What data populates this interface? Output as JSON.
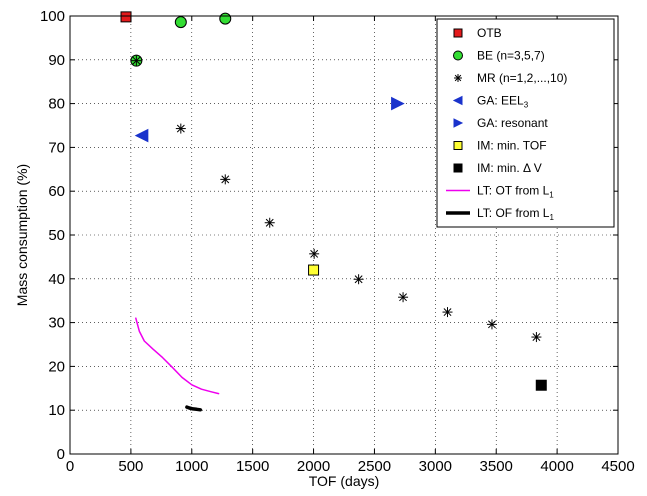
{
  "chart_data": {
    "type": "scatter",
    "xlabel": "TOF (days)",
    "ylabel": "Mass consumption (%)",
    "xlim": [
      0,
      4500
    ],
    "ylim": [
      0,
      100
    ],
    "xticks": [
      0,
      500,
      1000,
      1500,
      2000,
      2500,
      3000,
      3500,
      4000,
      4500
    ],
    "yticks": [
      0,
      10,
      20,
      30,
      40,
      50,
      60,
      70,
      80,
      90,
      100
    ],
    "grid": true,
    "legend_position": "top-right",
    "series": [
      {
        "name": "OTB",
        "legend": {
          "text": "OTB"
        },
        "marker": "square",
        "color": "#e41a1c",
        "points": [
          [
            460,
            99.8
          ]
        ]
      },
      {
        "name": "BE (n=3,5,7)",
        "legend": {
          "text": "BE (n=3,5,7)"
        },
        "marker": "circle",
        "color": "#33dd33",
        "points": [
          [
            545,
            89.8
          ],
          [
            910,
            98.6
          ],
          [
            1275,
            99.4
          ]
        ]
      },
      {
        "name": "MR (n=1,2,...,10)",
        "legend": {
          "text": "MR (n=1,2,...,10)"
        },
        "marker": "asterisk",
        "color": "#000000",
        "points": [
          [
            545,
            89.8
          ],
          [
            910,
            74.3
          ],
          [
            1275,
            62.7
          ],
          [
            1640,
            52.8
          ],
          [
            2005,
            45.7
          ],
          [
            2370,
            39.9
          ],
          [
            2735,
            35.8
          ],
          [
            3100,
            32.4
          ],
          [
            3465,
            29.6
          ],
          [
            3830,
            26.7
          ]
        ]
      },
      {
        "name": "GA: EEL3",
        "legend": {
          "text": "GA: EEL",
          "sub": "3"
        },
        "marker": "triangle-left",
        "color": "#1a33cc",
        "points": [
          [
            590,
            72.7
          ]
        ]
      },
      {
        "name": "GA: resonant",
        "legend": {
          "text": "GA: resonant"
        },
        "marker": "triangle-right",
        "color": "#1a33cc",
        "points": [
          [
            2690,
            80.0
          ]
        ]
      },
      {
        "name": "IM: min. TOF",
        "legend": {
          "text": "IM: min. TOF"
        },
        "marker": "square",
        "color": "#ffff33",
        "points": [
          [
            2000,
            42.0
          ]
        ]
      },
      {
        "name": "IM: min. Δ V",
        "legend": {
          "text": "IM: min. Δ V"
        },
        "marker": "square",
        "color": "#000000",
        "points": [
          [
            3870,
            15.7
          ]
        ]
      },
      {
        "name": "LT: OT from L1",
        "legend": {
          "text": "LT: OT from L",
          "sub": "1"
        },
        "marker": "line",
        "color": "#ee00ee",
        "linewidth": 1.5,
        "points": [
          [
            540,
            31
          ],
          [
            570,
            28
          ],
          [
            610,
            25.8
          ],
          [
            680,
            24
          ],
          [
            760,
            22
          ],
          [
            840,
            19.8
          ],
          [
            920,
            17.5
          ],
          [
            1000,
            15.8
          ],
          [
            1080,
            14.8
          ],
          [
            1160,
            14.2
          ],
          [
            1220,
            13.8
          ]
        ]
      },
      {
        "name": "LT: OF from L1",
        "legend": {
          "text": "LT: OF from L",
          "sub": "1"
        },
        "marker": "line",
        "color": "#000000",
        "linewidth": 3.5,
        "points": [
          [
            960,
            10.7
          ],
          [
            980,
            10.5
          ],
          [
            1010,
            10.3
          ],
          [
            1040,
            10.2
          ],
          [
            1070,
            10.1
          ]
        ]
      }
    ]
  }
}
